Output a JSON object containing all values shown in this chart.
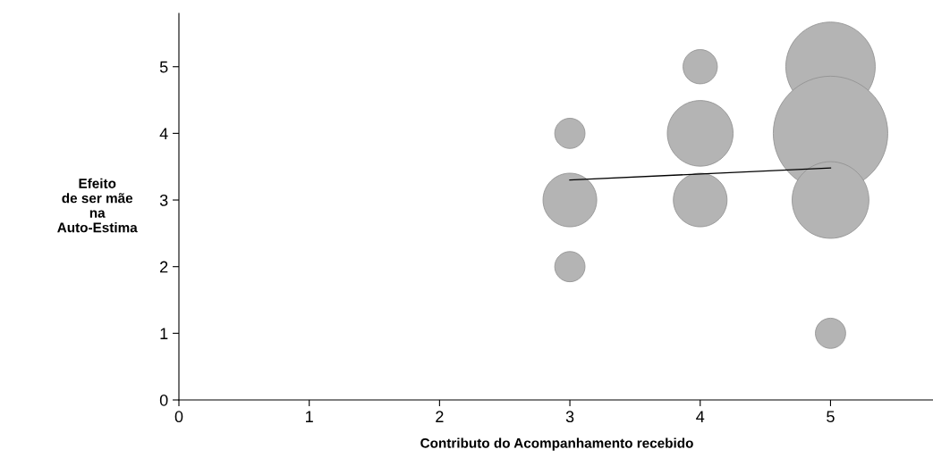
{
  "chart_data": {
    "type": "bubble",
    "xlabel": "Contributo do Acompanhamento recebido",
    "ylabel": "Efeito\nde ser mãe\nna\nAuto-Estima",
    "xlim": [
      0,
      5.8
    ],
    "xticks": [
      0,
      1,
      2,
      3,
      4,
      5
    ],
    "ylim": [
      0,
      5.8
    ],
    "yticks": [
      0,
      1,
      2,
      3,
      4,
      5
    ],
    "grid": false,
    "legend": false,
    "series": [
      {
        "color": "#b4b4b4",
        "x": [
          3,
          3,
          3,
          4,
          4,
          4,
          5,
          5,
          5,
          5
        ],
        "values": [
          4,
          3,
          2,
          5,
          4,
          3,
          5,
          4,
          3,
          1
        ],
        "sizes": [
          0.07,
          0.22,
          0.07,
          0.09,
          0.33,
          0.22,
          0.61,
          1,
          0.45,
          0.07
        ]
      },
      {
        "type": "line",
        "color": "#000000",
        "x": [
          3,
          5
        ],
        "values": [
          3.3,
          3.48
        ]
      }
    ]
  }
}
